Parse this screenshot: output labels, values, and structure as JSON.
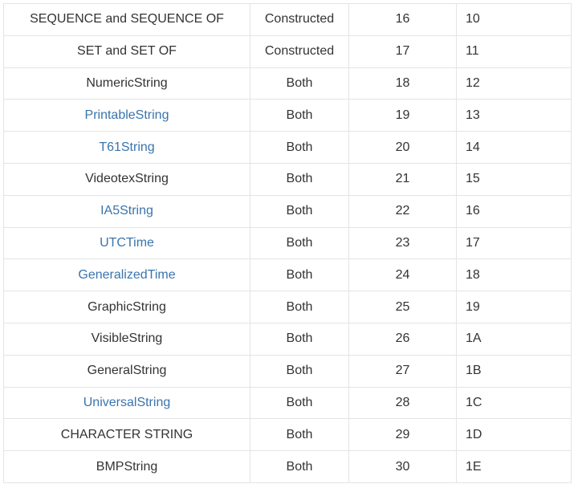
{
  "rows": [
    {
      "name": "SEQUENCE and SEQUENCE OF",
      "link": false,
      "form": "Constructed",
      "dec": "16",
      "hex": "10"
    },
    {
      "name": "SET and SET OF",
      "link": false,
      "form": "Constructed",
      "dec": "17",
      "hex": "11"
    },
    {
      "name": "NumericString",
      "link": false,
      "form": "Both",
      "dec": "18",
      "hex": "12"
    },
    {
      "name": "PrintableString",
      "link": true,
      "form": "Both",
      "dec": "19",
      "hex": "13"
    },
    {
      "name": "T61String",
      "link": true,
      "form": "Both",
      "dec": "20",
      "hex": "14"
    },
    {
      "name": "VideotexString",
      "link": false,
      "form": "Both",
      "dec": "21",
      "hex": "15"
    },
    {
      "name": "IA5String",
      "link": true,
      "form": "Both",
      "dec": "22",
      "hex": "16"
    },
    {
      "name": "UTCTime",
      "link": true,
      "form": "Both",
      "dec": "23",
      "hex": "17"
    },
    {
      "name": "GeneralizedTime",
      "link": true,
      "form": "Both",
      "dec": "24",
      "hex": "18"
    },
    {
      "name": "GraphicString",
      "link": false,
      "form": "Both",
      "dec": "25",
      "hex": "19"
    },
    {
      "name": "VisibleString",
      "link": false,
      "form": "Both",
      "dec": "26",
      "hex": "1A"
    },
    {
      "name": "GeneralString",
      "link": false,
      "form": "Both",
      "dec": "27",
      "hex": "1B"
    },
    {
      "name": "UniversalString",
      "link": true,
      "form": "Both",
      "dec": "28",
      "hex": "1C"
    },
    {
      "name": "CHARACTER STRING",
      "link": false,
      "form": "Both",
      "dec": "29",
      "hex": "1D"
    },
    {
      "name": "BMPString",
      "link": false,
      "form": "Both",
      "dec": "30",
      "hex": "1E"
    }
  ],
  "colors": {
    "text": "#333333",
    "link": "#3a74ad",
    "border": "#e4e4e4"
  }
}
